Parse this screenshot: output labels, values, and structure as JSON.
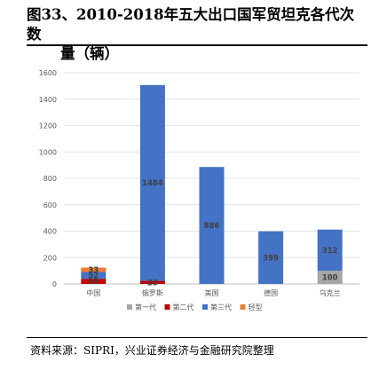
{
  "figure": {
    "title_line1": "图33、2010-2018年五大出口国军贸坦克各代次数",
    "title_line2": "量（辆）",
    "source": "资料来源：SIPRI，兴业证券经济与金融研究院整理"
  },
  "chart_data": {
    "type": "bar",
    "stacked": true,
    "title": "",
    "xlabel": "",
    "ylabel": "",
    "ylim": [
      0,
      1600
    ],
    "yticks": [
      0,
      200,
      400,
      600,
      800,
      1000,
      1200,
      1400,
      1600
    ],
    "grid": true,
    "legend_position": "bottom",
    "categories": [
      "中国",
      "俄罗斯",
      "美国",
      "德国",
      "乌克兰"
    ],
    "series": [
      {
        "name": "第一代",
        "color": "#a5a5a5",
        "values": [
          0,
          0,
          0,
          0,
          100
        ],
        "labels": [
          "",
          "",
          "",
          "",
          "100"
        ]
      },
      {
        "name": "第二代",
        "color": "#c00000",
        "values": [
          39,
          23,
          0,
          0,
          0
        ],
        "labels": [
          "39",
          "23",
          "",
          "",
          ""
        ]
      },
      {
        "name": "第三代",
        "color": "#4472c4",
        "values": [
          52,
          1484,
          886,
          399,
          312
        ],
        "labels": [
          "52",
          "1484",
          "886",
          "399",
          "312"
        ]
      },
      {
        "name": "轻型",
        "color": "#ed7d31",
        "values": [
          33,
          0,
          0,
          0,
          0
        ],
        "labels": [
          "33",
          "",
          "",
          "",
          ""
        ]
      }
    ]
  }
}
